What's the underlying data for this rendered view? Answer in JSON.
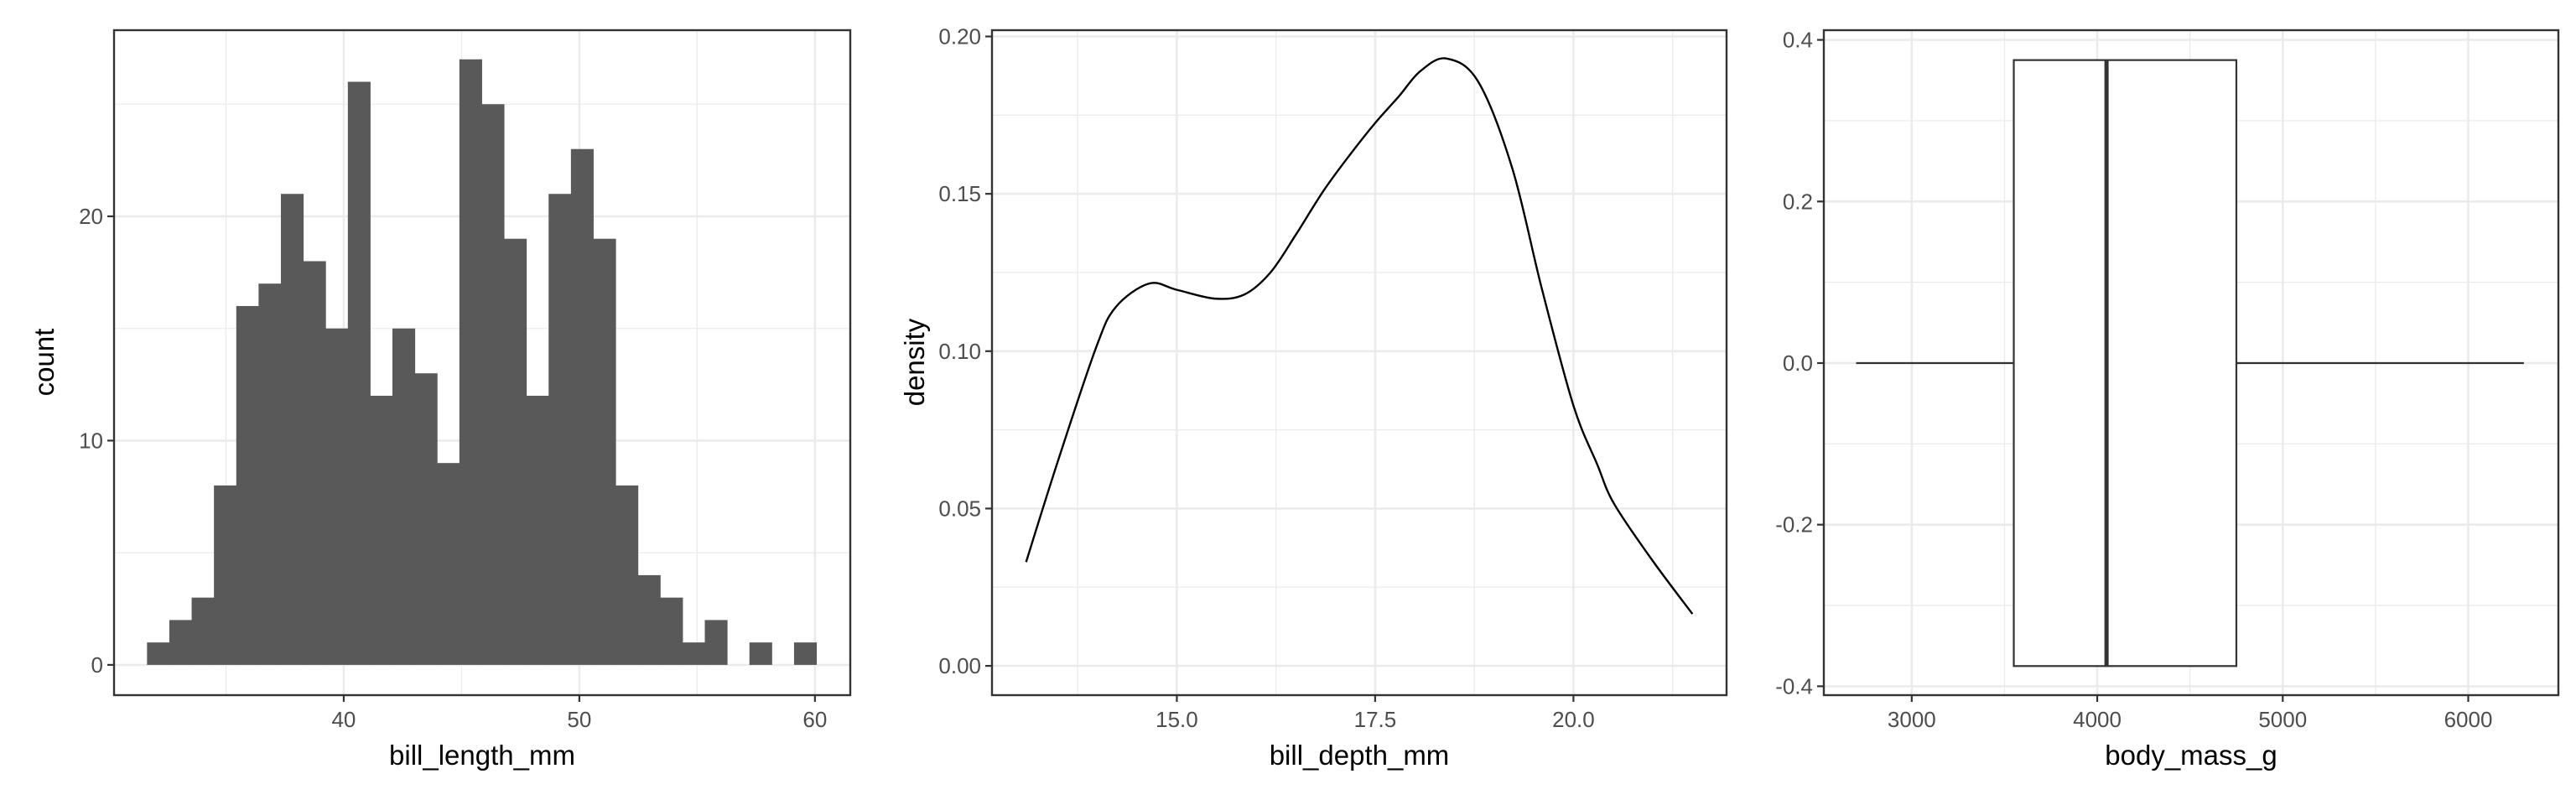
{
  "chart_data": [
    {
      "type": "bar",
      "subtype": "histogram",
      "xlabel": "bill_length_mm",
      "ylabel": "count",
      "bin_start": 31.65,
      "bin_width": 0.947,
      "counts": [
        1,
        2,
        3,
        8,
        16,
        17,
        21,
        18,
        15,
        26,
        12,
        15,
        13,
        9,
        27,
        25,
        19,
        12,
        21,
        23,
        19,
        8,
        4,
        3,
        1,
        2,
        0,
        1,
        0,
        1
      ],
      "xlim": [
        30.25,
        61.5
      ],
      "ylim": [
        -1.35,
        28.3
      ],
      "xticks": [
        40,
        50,
        60
      ],
      "xtick_labels": [
        "40",
        "50",
        "60"
      ],
      "xminor": [
        35,
        45,
        55
      ],
      "yticks": [
        0,
        10,
        20
      ],
      "ytick_labels": [
        "0",
        "10",
        "20"
      ],
      "yminor": [
        5,
        15,
        25
      ],
      "bar_color": "#595959",
      "grid": true
    },
    {
      "type": "line",
      "subtype": "density",
      "xlabel": "bill_depth_mm",
      "ylabel": "density",
      "x": [
        13.1,
        13.5,
        13.98,
        14.23,
        14.65,
        15.0,
        15.48,
        15.85,
        16.18,
        16.5,
        16.85,
        17.2,
        17.5,
        17.8,
        18.07,
        18.4,
        18.8,
        19.23,
        19.6,
        20.0,
        20.3,
        20.51,
        20.99,
        21.5
      ],
      "y": [
        0.033,
        0.065,
        0.101,
        0.114,
        0.1215,
        0.1195,
        0.1167,
        0.118,
        0.125,
        0.137,
        0.151,
        0.163,
        0.1725,
        0.181,
        0.189,
        0.193,
        0.1856,
        0.158,
        0.12,
        0.0827,
        0.064,
        0.0516,
        0.0337,
        0.0165
      ],
      "xlim": [
        12.67,
        21.93
      ],
      "ylim": [
        -0.0093,
        0.202
      ],
      "xticks": [
        15.0,
        17.5,
        20.0
      ],
      "xtick_labels": [
        "15.0",
        "17.5",
        "20.0"
      ],
      "xminor": [
        13.75,
        16.25,
        18.75,
        21.25
      ],
      "yticks": [
        0,
        0.05,
        0.1,
        0.15,
        0.2
      ],
      "ytick_labels": [
        "0.00",
        "0.05",
        "0.10",
        "0.15",
        "0.20"
      ],
      "yminor": [
        0.025,
        0.075,
        0.125,
        0.175
      ],
      "line_color": "#000000",
      "grid": true
    },
    {
      "type": "boxplot",
      "xlabel": "body_mass_g",
      "ylabel": "",
      "min": 2700,
      "q1": 3550,
      "median": 4050,
      "q3": 4750,
      "max": 6300,
      "box_half_height": 0.375,
      "xlim": [
        2526,
        6486
      ],
      "ylim": [
        -0.411,
        0.412
      ],
      "xticks": [
        3000,
        4000,
        5000,
        6000
      ],
      "xtick_labels": [
        "3000",
        "4000",
        "5000",
        "6000"
      ],
      "xminor": [
        3500,
        4500,
        5500
      ],
      "yticks": [
        -0.4,
        -0.2,
        0,
        0.2,
        0.4
      ],
      "ytick_labels": [
        "-0.4",
        "-0.2",
        "0.0",
        "0.2",
        "0.4"
      ],
      "yminor": [
        -0.3,
        -0.1,
        0.1,
        0.3
      ],
      "line_color": "#333333",
      "grid": true
    }
  ]
}
